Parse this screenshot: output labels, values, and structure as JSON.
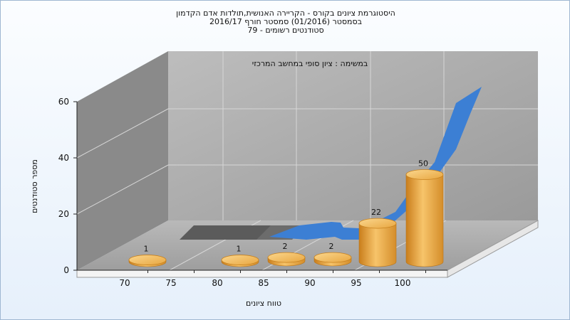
{
  "chart_data": {
    "type": "bar",
    "title_lines": [
      "היסטוגרמת ציונים בקורס - הקריירה האנושית,תולדות אדם הקדמון",
      "בסמסטר  (01/2016)  סמסטר חורף  2016/17",
      "סטודנטים רשומים - 79"
    ],
    "subtitle": "במשימה : ציון סופי במחשב המרכזי",
    "xlabel": "טווח ציונים",
    "ylabel": "מספר סטודנטים",
    "x_tick_labels": [
      "70",
      "75",
      "80",
      "85",
      "90",
      "95",
      "100"
    ],
    "ylim": [
      0,
      60
    ],
    "y_ticks": [
      0,
      20,
      40,
      60
    ],
    "bars": [
      {
        "label": "1",
        "value": 1
      },
      {
        "label": "1",
        "value": 1
      },
      {
        "label": "2",
        "value": 2
      },
      {
        "label": "2",
        "value": 2
      },
      {
        "label": "22",
        "value": 22
      },
      {
        "label": "50",
        "value": 50
      }
    ],
    "grid": true,
    "colors": {
      "bar": "#e8a640",
      "area": "#3c7fd4",
      "ribbon": "#5a5a5a",
      "wall": "#a8a8a8"
    }
  }
}
